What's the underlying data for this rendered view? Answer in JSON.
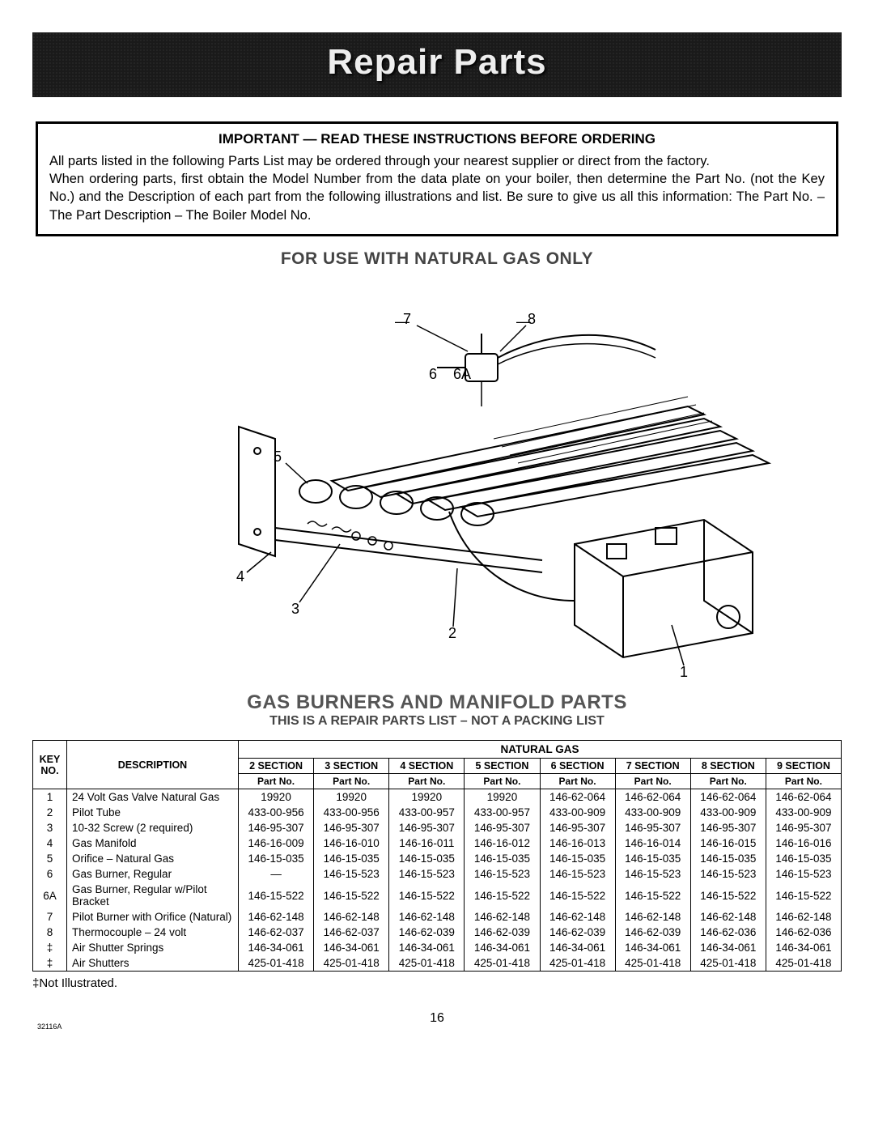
{
  "banner": {
    "title": "Repair Parts"
  },
  "important_box": {
    "title": "IMPORTANT — READ THESE INSTRUCTIONS BEFORE ORDERING",
    "line1": "All parts listed in the following Parts List may be ordered through your nearest supplier or direct from the factory.",
    "line2": "When ordering parts, first obtain the Model Number from the data plate on your boiler, then determine the Part No. (not the Key No.) and the Description of each part from the following illustrations and list. Be sure to give us all this information: The Part No. – The Part Description – The Boiler Model No."
  },
  "subhead": "FOR USE WITH NATURAL GAS ONLY",
  "diagram": {
    "callouts": {
      "c1": "1",
      "c2": "2",
      "c3": "3",
      "c4": "4",
      "c5": "5",
      "c6": "6",
      "c6a": "6A",
      "c7": "7",
      "c8": "8"
    }
  },
  "section": {
    "title": "GAS BURNERS AND MANIFOLD PARTS",
    "sub": "THIS IS A REPAIR PARTS LIST – NOT A PACKING LIST"
  },
  "table": {
    "head": {
      "natural_gas": "NATURAL GAS",
      "key_no": "KEY NO.",
      "description": "DESCRIPTION",
      "sections": [
        "2 SECTION",
        "3 SECTION",
        "4 SECTION",
        "5 SECTION",
        "6 SECTION",
        "7 SECTION",
        "8 SECTION",
        "9 SECTION"
      ],
      "part_no": "Part No."
    },
    "rows": [
      {
        "key": "1",
        "desc": "24 Volt Gas Valve Natural Gas",
        "v": [
          "19920",
          "19920",
          "19920",
          "19920",
          "146-62-064",
          "146-62-064",
          "146-62-064",
          "146-62-064"
        ]
      },
      {
        "key": "2",
        "desc": "Pilot Tube",
        "v": [
          "433-00-956",
          "433-00-956",
          "433-00-957",
          "433-00-957",
          "433-00-909",
          "433-00-909",
          "433-00-909",
          "433-00-909"
        ]
      },
      {
        "key": "3",
        "desc": "10-32 Screw (2 required)",
        "v": [
          "146-95-307",
          "146-95-307",
          "146-95-307",
          "146-95-307",
          "146-95-307",
          "146-95-307",
          "146-95-307",
          "146-95-307"
        ]
      },
      {
        "key": "4",
        "desc": "Gas Manifold",
        "v": [
          "146-16-009",
          "146-16-010",
          "146-16-011",
          "146-16-012",
          "146-16-013",
          "146-16-014",
          "146-16-015",
          "146-16-016"
        ]
      },
      {
        "key": "5",
        "desc": "Orifice – Natural Gas",
        "v": [
          "146-15-035",
          "146-15-035",
          "146-15-035",
          "146-15-035",
          "146-15-035",
          "146-15-035",
          "146-15-035",
          "146-15-035"
        ]
      },
      {
        "key": "6",
        "desc": "Gas Burner, Regular",
        "v": [
          "—",
          "146-15-523",
          "146-15-523",
          "146-15-523",
          "146-15-523",
          "146-15-523",
          "146-15-523",
          "146-15-523"
        ]
      },
      {
        "key": "6A",
        "desc": "Gas Burner, Regular w/Pilot Bracket",
        "v": [
          "146-15-522",
          "146-15-522",
          "146-15-522",
          "146-15-522",
          "146-15-522",
          "146-15-522",
          "146-15-522",
          "146-15-522"
        ]
      },
      {
        "key": "7",
        "desc": "Pilot Burner with Orifice (Natural)",
        "v": [
          "146-62-148",
          "146-62-148",
          "146-62-148",
          "146-62-148",
          "146-62-148",
          "146-62-148",
          "146-62-148",
          "146-62-148"
        ]
      },
      {
        "key": "8",
        "desc": "Thermocouple – 24 volt",
        "v": [
          "146-62-037",
          "146-62-037",
          "146-62-039",
          "146-62-039",
          "146-62-039",
          "146-62-039",
          "146-62-036",
          "146-62-036"
        ]
      },
      {
        "key": "‡",
        "desc": "Air Shutter Springs",
        "v": [
          "146-34-061",
          "146-34-061",
          "146-34-061",
          "146-34-061",
          "146-34-061",
          "146-34-061",
          "146-34-061",
          "146-34-061"
        ]
      },
      {
        "key": "‡",
        "desc": "Air Shutters",
        "v": [
          "425-01-418",
          "425-01-418",
          "425-01-418",
          "425-01-418",
          "425-01-418",
          "425-01-418",
          "425-01-418",
          "425-01-418"
        ]
      }
    ]
  },
  "footnote": "‡Not Illustrated.",
  "page_number": "16",
  "doc_id": "32116A",
  "colors": {
    "banner_bg": "#1a1a1a",
    "banner_fg": "#eeeeee",
    "text": "#000000",
    "subhead": "#444444",
    "border": "#000000"
  }
}
